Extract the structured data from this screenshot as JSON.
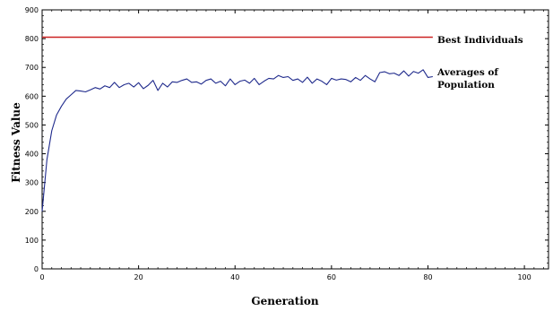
{
  "chart_data": {
    "type": "line",
    "title": "",
    "xlabel": "Generation",
    "ylabel": "Fitness Value",
    "xlim": [
      0,
      105
    ],
    "ylim": [
      0,
      900
    ],
    "xticks": [
      0,
      20,
      40,
      60,
      80,
      100
    ],
    "yticks": [
      0,
      100,
      200,
      300,
      400,
      500,
      600,
      700,
      800,
      900
    ],
    "grid": false,
    "legend": "inline-right",
    "series": [
      {
        "name": "Best Individuals",
        "color": "#cc2222",
        "x": [
          0,
          81
        ],
        "y": [
          805,
          805
        ]
      },
      {
        "name": "Averages of Population",
        "color": "#1f2a8c",
        "x": [
          0,
          1,
          2,
          3,
          4,
          5,
          6,
          7,
          8,
          9,
          10,
          11,
          12,
          13,
          14,
          15,
          16,
          17,
          18,
          19,
          20,
          21,
          22,
          23,
          24,
          25,
          26,
          27,
          28,
          29,
          30,
          31,
          32,
          33,
          34,
          35,
          36,
          37,
          38,
          39,
          40,
          41,
          42,
          43,
          44,
          45,
          46,
          47,
          48,
          49,
          50,
          51,
          52,
          53,
          54,
          55,
          56,
          57,
          58,
          59,
          60,
          61,
          62,
          63,
          64,
          65,
          66,
          67,
          68,
          69,
          70,
          71,
          72,
          73,
          74,
          75,
          76,
          77,
          78,
          79,
          80,
          81
        ],
        "y": [
          200,
          380,
          480,
          535,
          565,
          590,
          605,
          620,
          618,
          615,
          622,
          630,
          625,
          636,
          630,
          648,
          630,
          640,
          645,
          632,
          647,
          626,
          638,
          655,
          620,
          645,
          632,
          650,
          648,
          655,
          660,
          648,
          650,
          642,
          655,
          660,
          645,
          652,
          636,
          660,
          640,
          652,
          656,
          645,
          662,
          640,
          652,
          662,
          660,
          672,
          665,
          668,
          655,
          660,
          648,
          666,
          645,
          660,
          652,
          640,
          662,
          656,
          660,
          658,
          650,
          665,
          655,
          672,
          660,
          650,
          682,
          685,
          678,
          680,
          672,
          688,
          670,
          686,
          680,
          692,
          665,
          668
        ]
      }
    ],
    "legend_entries": {
      "best": "Best Individuals",
      "avg_line1": "Averages of",
      "avg_line2": "Population"
    }
  }
}
